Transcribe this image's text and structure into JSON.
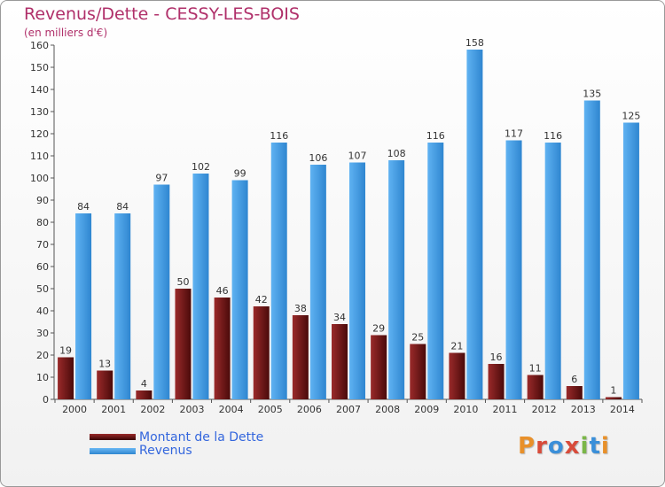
{
  "header": {
    "title": "Revenus/Dette - CESSY-LES-BOIS",
    "subtitle": "(en milliers d'€)"
  },
  "legend": {
    "debt_label": "Montant de la Dette",
    "revenue_label": "Revenus"
  },
  "logo": {
    "text": "Proxiti",
    "colors": [
      "#e8902a",
      "#d84b3a",
      "#3a8fd9",
      "#d84b3a",
      "#7ab648",
      "#3a8fd9",
      "#e8902a"
    ]
  },
  "colors": {
    "debt": "#7a1a1a",
    "revenue": "#4aa0e8",
    "title": "#b0306a"
  },
  "chart_data": {
    "type": "bar",
    "title": "Revenus/Dette - CESSY-LES-BOIS",
    "subtitle": "(en milliers d'€)",
    "categories": [
      "2000",
      "2001",
      "2002",
      "2003",
      "2004",
      "2005",
      "2006",
      "2007",
      "2008",
      "2009",
      "2010",
      "2011",
      "2012",
      "2013",
      "2014"
    ],
    "series": [
      {
        "name": "Montant de la Dette",
        "values": [
          19,
          13,
          4,
          50,
          46,
          42,
          38,
          34,
          29,
          25,
          21,
          16,
          11,
          6,
          1
        ]
      },
      {
        "name": "Revenus",
        "values": [
          84,
          84,
          97,
          102,
          99,
          116,
          106,
          107,
          108,
          116,
          158,
          117,
          116,
          135,
          125
        ]
      }
    ],
    "ylim": [
      0,
      160
    ],
    "yticks": [
      0,
      10,
      20,
      30,
      40,
      50,
      60,
      70,
      80,
      90,
      100,
      110,
      120,
      130,
      140,
      150,
      160
    ],
    "grid": false,
    "legend_position": "bottom-left"
  }
}
